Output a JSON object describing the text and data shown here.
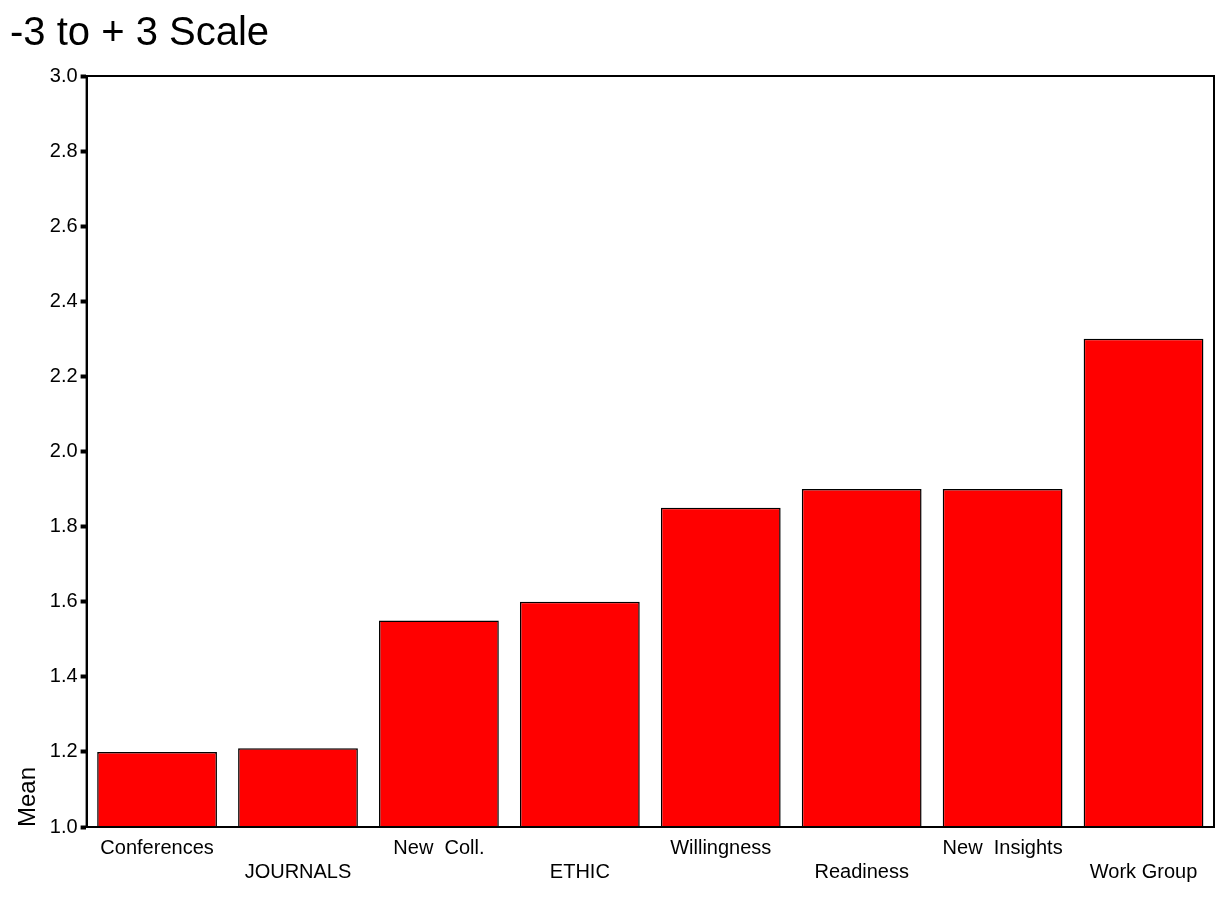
{
  "chart_data": {
    "type": "bar",
    "title": "-3 to + 3 Scale",
    "ylabel": "Mean",
    "categories": [
      "Conferences",
      "JOURNALS",
      "New  Coll.",
      "ETHIC",
      "Willingness",
      "Readiness",
      "New  Insights",
      "Work Group"
    ],
    "values": [
      1.2,
      1.21,
      1.55,
      1.6,
      1.85,
      1.9,
      1.9,
      2.3
    ],
    "color": "#ff0000",
    "ylim": [
      1.0,
      3.0
    ],
    "yticks": [
      {
        "value": 1.0,
        "label": "1.0"
      },
      {
        "value": 1.2,
        "label": "1.2"
      },
      {
        "value": 1.4,
        "label": "1.4"
      },
      {
        "value": 1.6,
        "label": "1.6"
      },
      {
        "value": 1.8,
        "label": "1.8"
      },
      {
        "value": 2.0,
        "label": "2.0"
      },
      {
        "value": 2.2,
        "label": "2.2"
      },
      {
        "value": 2.4,
        "label": "2.4"
      },
      {
        "value": 2.6,
        "label": "2.6"
      },
      {
        "value": 2.8,
        "label": "2.8"
      },
      {
        "value": 3.0,
        "label": "3.0"
      }
    ],
    "grid": false,
    "legend": false
  }
}
